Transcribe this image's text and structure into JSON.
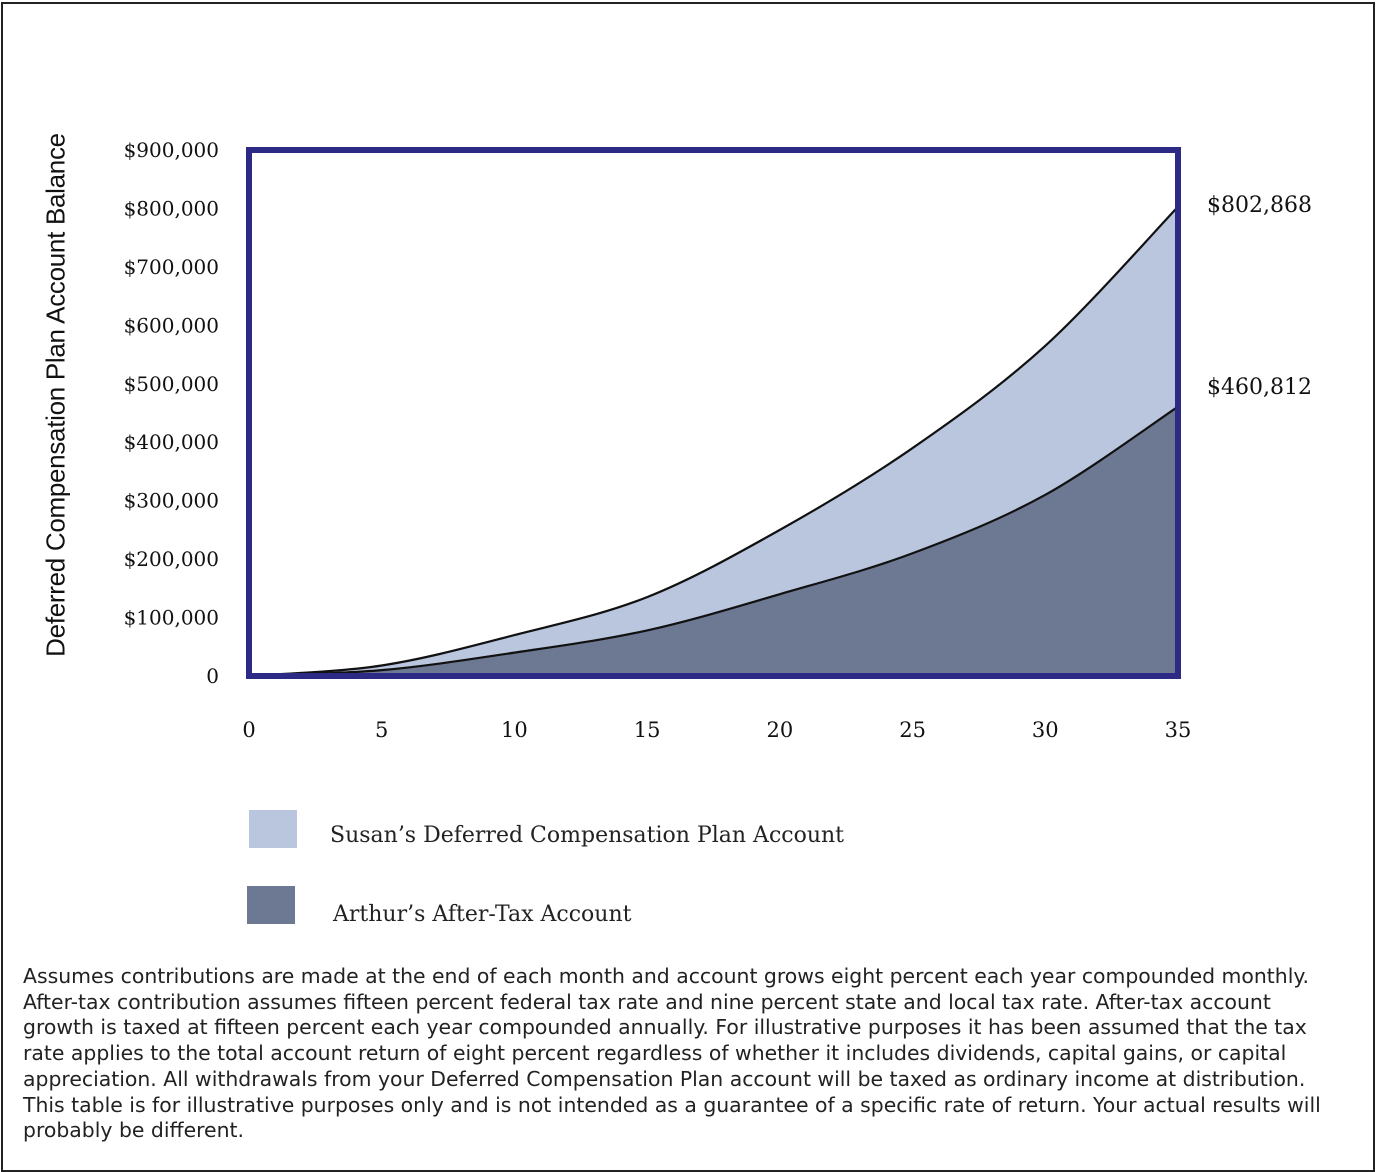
{
  "chart_data": {
    "type": "area",
    "ylabel": "Deferred Compensation Plan Account Balance",
    "xlabel": "",
    "x_ticks": [
      0,
      5,
      10,
      15,
      20,
      25,
      30,
      35
    ],
    "x_tick_labels": [
      "0",
      "5",
      "10",
      "15",
      "20",
      "25",
      "30",
      "35"
    ],
    "xlim": [
      0,
      35
    ],
    "ylim": [
      0,
      900000
    ],
    "y_ticks": [
      0,
      100000,
      200000,
      300000,
      400000,
      500000,
      600000,
      700000,
      800000,
      900000
    ],
    "y_tick_labels": [
      "0",
      "$100,000",
      "$200,000",
      "$300,000",
      "$400,000",
      "$500,000",
      "$600,000",
      "$700,000",
      "$800,000",
      "$900,000"
    ],
    "x": [
      0,
      5,
      10,
      15,
      20,
      25,
      30,
      35
    ],
    "series": [
      {
        "name": "Susan’s Deferred Compensation Plan Account",
        "values": [
          0,
          18000,
          70000,
          135000,
          250000,
          390000,
          565000,
          802868
        ],
        "end_label": "$802,868",
        "color": "#b9c6de"
      },
      {
        "name": "Arthur’s After-Tax Account",
        "values": [
          0,
          10000,
          40000,
          78000,
          140000,
          210000,
          310000,
          460812
        ],
        "end_label": "$460,812",
        "color": "#6d7893"
      }
    ],
    "frame_color": "#2c2a84",
    "grid": false
  },
  "footnote": "Assumes contributions are made at the end of each month and account grows eight percent each year compounded monthly. After-tax contribution assumes fifteen percent federal tax rate and nine percent state and local tax rate. After-tax account growth is taxed at fifteen percent each year compounded annually. For illustrative purposes it has been assumed that the tax rate applies to the total account return of eight percent regardless of whether it includes dividends, capital gains, or capital appreciation. All withdrawals from your Deferred Compensation Plan account will be taxed as ordinary income at distribution. This table is for illustrative purposes only and is not intended as a guarantee of a specific rate of return. Your actual results will probably be different."
}
